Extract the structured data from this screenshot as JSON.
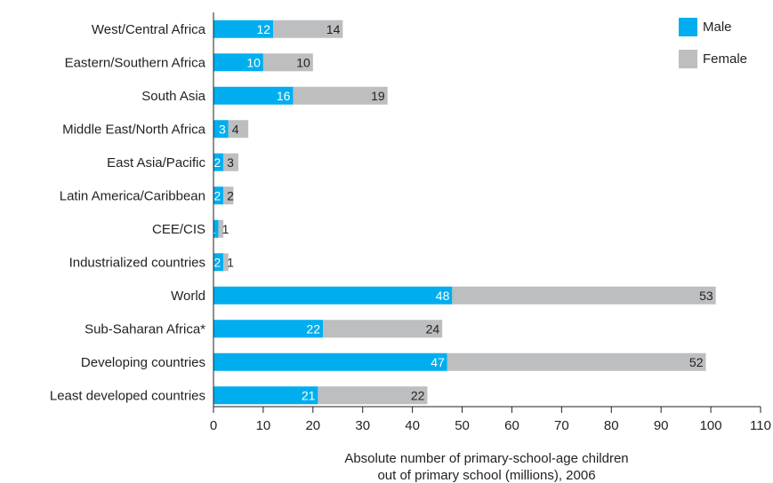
{
  "chart_data": {
    "type": "bar",
    "orientation": "horizontal",
    "stacked": true,
    "categories": [
      "West/Central Africa",
      "Eastern/Southern Africa",
      "South Asia",
      "Middle East/North Africa",
      "East Asia/Pacific",
      "Latin America/Caribbean",
      "CEE/CIS",
      "Industrialized countries",
      "World",
      "Sub-Saharan Africa*",
      "Developing countries",
      "Least developed countries"
    ],
    "series": [
      {
        "name": "Male",
        "color": "#00aeef",
        "values": [
          12,
          10,
          16,
          3,
          2,
          2,
          1,
          2,
          48,
          22,
          47,
          21
        ]
      },
      {
        "name": "Female",
        "color": "#bcbec0",
        "values": [
          14,
          10,
          19,
          4,
          3,
          2,
          1,
          1,
          53,
          24,
          52,
          22
        ]
      }
    ],
    "xlabel_lines": [
      "Absolute number of primary-school-age children",
      "out of primary school (millions), 2006"
    ],
    "xlim": [
      0,
      110
    ],
    "xticks": [
      0,
      10,
      20,
      30,
      40,
      50,
      60,
      70,
      80,
      90,
      100,
      110
    ],
    "grid": false,
    "legend_position": "top-right"
  }
}
